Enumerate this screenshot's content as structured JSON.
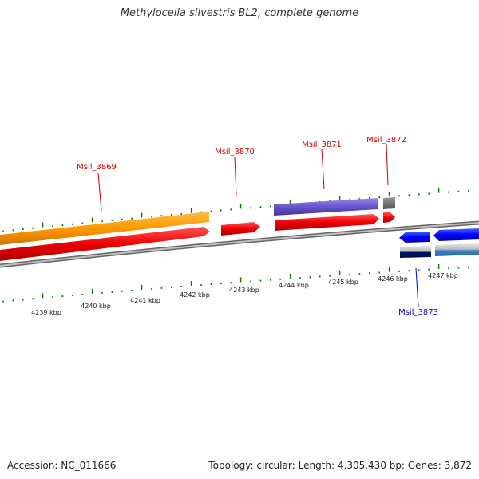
{
  "title": "Methylocella silvestris BL2, complete genome",
  "footer": {
    "accession": "Accession: NC_011666",
    "summary": "Topology: circular; Length: 4,305,430 bp; Genes: 3,872"
  },
  "scale": {
    "ticks": [
      "4239 kbp",
      "4240 kbp",
      "4241 kbp",
      "4242 kbp",
      "4243 kbp",
      "4244 kbp",
      "4245 kbp",
      "4246 kbp",
      "4247 kbp"
    ]
  },
  "gene_labels": {
    "msil_3869": "Msil_3869",
    "msil_3870": "Msil_3870",
    "msil_3871": "Msil_3871",
    "msil_3872": "Msil_3872",
    "msil_3873": "Msil_3873"
  },
  "colors": {
    "forward_label": "#cc0000",
    "reverse_label": "#0000cc",
    "cds_forward": "#ff0000",
    "gene_orange": "#ff9900",
    "gene_purple": "#6655cc",
    "gene_grey": "#666666",
    "cds_reverse": "#0000ff",
    "tick": "#007700",
    "backbone": "#888888"
  }
}
